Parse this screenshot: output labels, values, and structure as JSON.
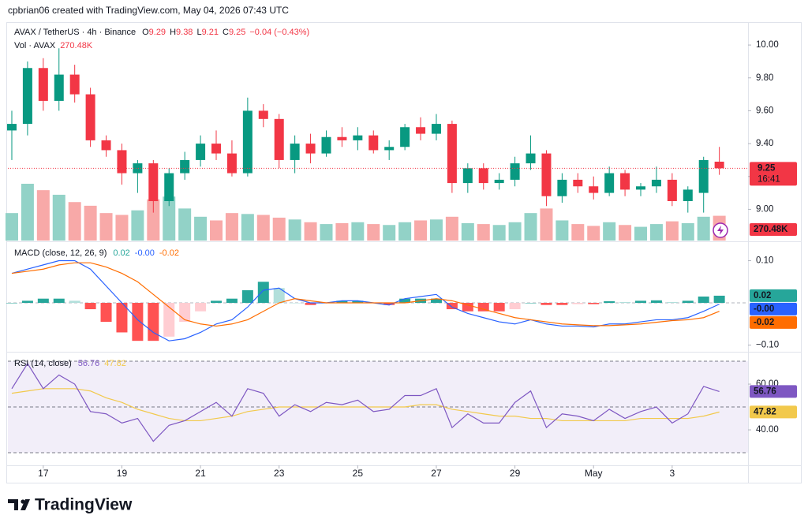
{
  "credit": "cpbrian06 created with TradingView.com, May 04, 2026 07:43 UTC",
  "brand": "TradingView",
  "chart_data": [
    {
      "type": "candlestick",
      "title": "AVAX / TetherUS · 4h · Binance",
      "ohlc_prefixes": [
        "O",
        "H",
        "L",
        "C"
      ],
      "change_label": "−0.04 (−0.43%)",
      "countdown": "16:41",
      "x": [
        16.2,
        16.6,
        17,
        17.4,
        17.8,
        18.2,
        18.6,
        19,
        19.4,
        19.8,
        20.2,
        20.6,
        21,
        21.4,
        21.8,
        22.2,
        22.6,
        23,
        23.4,
        23.8,
        24.2,
        24.6,
        25,
        25.4,
        25.8,
        26.2,
        26.6,
        27,
        27.4,
        27.8,
        28.2,
        28.6,
        29,
        29.4,
        29.8,
        30.2,
        30.6,
        31,
        31.4,
        31.8,
        32.2,
        32.6,
        33,
        33.4,
        33.8,
        34.2
      ],
      "xlim": [
        16.1,
        34.93
      ],
      "xticks": [
        17,
        19,
        21,
        23,
        25,
        27,
        29,
        {
          "value": 31,
          "label": "May"
        },
        {
          "value": 33,
          "label": "3"
        }
      ],
      "open": [
        9.48,
        9.52,
        9.86,
        9.66,
        9.82,
        9.7,
        9.42,
        9.36,
        9.22,
        9.28,
        9.05,
        9.22,
        9.3,
        9.4,
        9.34,
        9.22,
        9.6,
        9.55,
        9.3,
        9.4,
        9.34,
        9.44,
        9.42,
        9.45,
        9.36,
        9.38,
        9.5,
        9.46,
        9.52,
        9.16,
        9.25,
        9.16,
        9.18,
        9.28,
        9.34,
        9.08,
        9.18,
        9.14,
        9.1,
        9.22,
        9.12,
        9.14,
        9.18,
        9.05,
        9.1,
        9.29
      ],
      "high": [
        9.6,
        9.9,
        9.92,
        9.98,
        9.88,
        9.74,
        9.45,
        9.4,
        9.3,
        9.3,
        9.25,
        9.35,
        9.45,
        9.48,
        9.42,
        9.68,
        9.64,
        9.58,
        9.45,
        9.46,
        9.48,
        9.5,
        9.5,
        9.48,
        9.42,
        9.52,
        9.56,
        9.58,
        9.54,
        9.28,
        9.28,
        9.22,
        9.32,
        9.45,
        9.36,
        9.22,
        9.22,
        9.2,
        9.26,
        9.24,
        9.16,
        9.26,
        9.22,
        9.14,
        9.32,
        9.38
      ],
      "low": [
        9.3,
        9.45,
        9.6,
        9.6,
        9.65,
        9.38,
        9.32,
        9.15,
        9.1,
        8.98,
        9.02,
        9.18,
        9.26,
        9.3,
        9.2,
        9.2,
        9.5,
        9.25,
        9.22,
        9.28,
        9.32,
        9.38,
        9.36,
        9.34,
        9.3,
        9.36,
        9.42,
        9.42,
        9.1,
        9.1,
        9.12,
        9.12,
        9.14,
        9.24,
        9.02,
        9.04,
        9.1,
        9.06,
        9.08,
        9.08,
        9.08,
        9.1,
        9.02,
        8.98,
        8.98,
        9.21
      ],
      "close": [
        9.52,
        9.86,
        9.66,
        9.82,
        9.7,
        9.42,
        9.36,
        9.22,
        9.28,
        9.05,
        9.22,
        9.3,
        9.4,
        9.34,
        9.22,
        9.6,
        9.55,
        9.3,
        9.4,
        9.34,
        9.44,
        9.42,
        9.45,
        9.36,
        9.38,
        9.5,
        9.46,
        9.52,
        9.16,
        9.25,
        9.16,
        9.18,
        9.28,
        9.34,
        9.08,
        9.18,
        9.14,
        9.1,
        9.22,
        9.12,
        9.14,
        9.18,
        9.05,
        9.12,
        9.3,
        9.25
      ],
      "up_color": "#089981",
      "down_color": "#f23645",
      "ylim": [
        8.81,
        10.13
      ],
      "yticks": [
        {
          "value": 9,
          "label": "9.00"
        },
        {
          "value": 9.2,
          "label": "9.20"
        },
        {
          "value": 9.4,
          "label": "9.40"
        },
        {
          "value": 9.6,
          "label": "9.60"
        },
        {
          "value": 9.8,
          "label": "9.80"
        },
        {
          "value": 10,
          "label": "10.00"
        }
      ],
      "volume": {
        "name": "Vol · AVAX",
        "last_label": "270.48K",
        "up_color": "#92d2c7",
        "down_color": "#f8a9a8",
        "values": [
          300,
          620,
          550,
          500,
          420,
          380,
          300,
          280,
          330,
          450,
          480,
          350,
          260,
          220,
          300,
          290,
          280,
          250,
          230,
          200,
          180,
          190,
          200,
          180,
          170,
          200,
          220,
          230,
          260,
          190,
          180,
          170,
          200,
          300,
          350,
          220,
          180,
          160,
          200,
          170,
          150,
          180,
          210,
          190,
          260,
          270.48
        ]
      }
    },
    {
      "type": "macd",
      "title": "MACD (close, 12, 26, 9)",
      "ylim": [
        -0.114,
        0.144
      ],
      "yticks": [
        {
          "value": -0.1,
          "label": "−0.10"
        },
        {
          "value": 0.1,
          "label": "0.10"
        }
      ],
      "histogram": {
        "last_label": "0.02",
        "colors": [
          "#26a69a",
          "#b2dfdb",
          "#ff5252",
          "#ffcdd2"
        ],
        "values": [
          0,
          0.005,
          0.01,
          0.01,
          0.005,
          -0.015,
          -0.045,
          -0.07,
          -0.09,
          -0.09,
          -0.08,
          -0.045,
          -0.02,
          0.005,
          0.01,
          0.03,
          0.05,
          0.035,
          0,
          -0.005,
          0,
          0.005,
          0.005,
          0,
          -0.005,
          0.01,
          0.01,
          0.01,
          -0.015,
          -0.02,
          -0.02,
          -0.02,
          -0.015,
          0,
          -0.005,
          -0.005,
          -0.003,
          -0.003,
          0.004,
          0.002,
          0.005,
          0.006,
          0.002,
          0.005,
          0.015,
          0.017
        ]
      },
      "macd": {
        "color": "#2962ff",
        "last_label": "-0.00",
        "values": [
          0.07,
          0.08,
          0.09,
          0.1,
          0.1,
          0.08,
          0.04,
          0,
          -0.04,
          -0.07,
          -0.09,
          -0.085,
          -0.07,
          -0.05,
          -0.04,
          -0.01,
          0.03,
          0.035,
          0.01,
          0,
          0,
          0.005,
          0.005,
          0,
          -0.005,
          0.01,
          0.015,
          0.02,
          -0.01,
          -0.025,
          -0.035,
          -0.045,
          -0.05,
          -0.04,
          -0.05,
          -0.055,
          -0.055,
          -0.057,
          -0.05,
          -0.05,
          -0.045,
          -0.04,
          -0.04,
          -0.035,
          -0.02,
          -0.003
        ]
      },
      "signal": {
        "color": "#ff6d00",
        "values": [
          0.07,
          0.075,
          0.08,
          0.09,
          0.095,
          0.095,
          0.085,
          0.07,
          0.05,
          0.02,
          -0.01,
          -0.04,
          -0.05,
          -0.055,
          -0.05,
          -0.04,
          -0.02,
          0,
          0.01,
          0.005,
          0,
          0,
          0,
          0,
          0,
          0,
          0.005,
          0.01,
          0.005,
          -0.005,
          -0.015,
          -0.025,
          -0.035,
          -0.04,
          -0.045,
          -0.05,
          -0.052,
          -0.054,
          -0.054,
          -0.052,
          -0.05,
          -0.046,
          -0.042,
          -0.04,
          -0.035,
          -0.02
        ]
      }
    },
    {
      "type": "rsi",
      "title": "RSI (14, close)",
      "ylim": [
        24.5,
        73.8
      ],
      "yticks": [
        {
          "value": 40,
          "label": "40.00"
        },
        {
          "value": 60,
          "label": "60.00"
        }
      ],
      "levels": [
        70,
        50,
        30
      ],
      "band_color": "#7e57c2",
      "rsi": {
        "color": "#7e57c2",
        "values": [
          58,
          69,
          58,
          64,
          60,
          48,
          47,
          43,
          45,
          35,
          42,
          44,
          48,
          52,
          46,
          58,
          56,
          46,
          51,
          48,
          52,
          51,
          53,
          48,
          49,
          55,
          55,
          58,
          41,
          47,
          43,
          43,
          52,
          57,
          41,
          47,
          46,
          44,
          49,
          45,
          48,
          50,
          43,
          47,
          59,
          56.76
        ]
      },
      "ma": {
        "color": "#f2c94c",
        "values": [
          56,
          57,
          58,
          58,
          58,
          57,
          54,
          52,
          49,
          47,
          45,
          44,
          44,
          45,
          46,
          48,
          49,
          50,
          50,
          50,
          50,
          50,
          50,
          50,
          50,
          50,
          51,
          51,
          49,
          48,
          47,
          46,
          46,
          45,
          45,
          44,
          44,
          44,
          44,
          44,
          45,
          45,
          45,
          45,
          46,
          47.82
        ]
      }
    }
  ]
}
